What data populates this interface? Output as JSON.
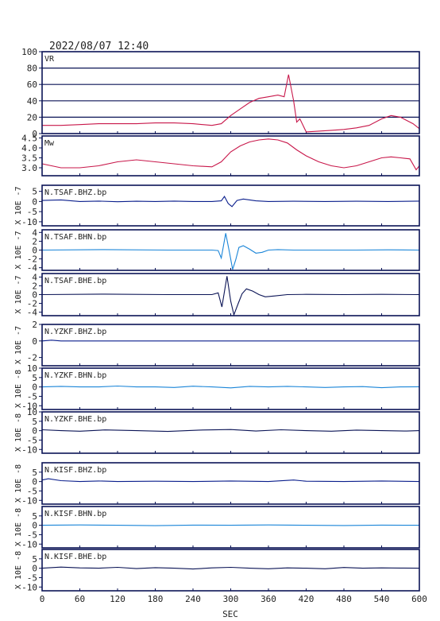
{
  "header": {
    "timestamp": "2022/08/07  12:40"
  },
  "chart_data": {
    "type": "line",
    "xlabel": "SEC",
    "xlim": [
      0,
      600
    ],
    "xticks": [
      "0",
      "60",
      "120",
      "180",
      "240",
      "300",
      "360",
      "420",
      "480",
      "540",
      "600"
    ],
    "panels": [
      {
        "label": "VR",
        "ylabel": "",
        "ylim": [
          0,
          100
        ],
        "yticks": [
          "0",
          "20",
          "40",
          "60",
          "80",
          "100"
        ],
        "grid": true,
        "color": "#c8174a",
        "series": {
          "x": [
            0,
            30,
            60,
            90,
            120,
            150,
            180,
            210,
            240,
            270,
            285,
            300,
            315,
            330,
            345,
            360,
            375,
            385,
            392,
            395,
            400,
            405,
            410,
            420,
            440,
            460,
            480,
            500,
            520,
            540,
            555,
            570,
            590,
            600
          ],
          "y": [
            10,
            10,
            11,
            12,
            12,
            12,
            13,
            13,
            12,
            10,
            12,
            22,
            30,
            38,
            43,
            45,
            47,
            45,
            72,
            60,
            40,
            14,
            18,
            2,
            3,
            4,
            5,
            7,
            10,
            18,
            22,
            20,
            12,
            6
          ]
        }
      },
      {
        "label": "Mw",
        "ylabel": "",
        "ylim": [
          2.6,
          4.6
        ],
        "yticks": [
          "3.0",
          "3.5",
          "4.0",
          "4.5"
        ],
        "grid": false,
        "color": "#c8174a",
        "series": {
          "x": [
            0,
            30,
            60,
            90,
            120,
            150,
            180,
            210,
            240,
            270,
            285,
            300,
            315,
            330,
            345,
            360,
            375,
            390,
            405,
            420,
            440,
            460,
            480,
            500,
            520,
            540,
            555,
            570,
            585,
            595,
            600
          ],
          "y": [
            3.2,
            3.0,
            3.0,
            3.1,
            3.3,
            3.4,
            3.3,
            3.2,
            3.1,
            3.05,
            3.3,
            3.8,
            4.1,
            4.3,
            4.4,
            4.45,
            4.4,
            4.25,
            3.9,
            3.6,
            3.3,
            3.1,
            3.0,
            3.1,
            3.3,
            3.5,
            3.55,
            3.5,
            3.45,
            2.9,
            3.1
          ]
        }
      },
      {
        "label": "N.TSAF.BHZ.bp",
        "ylabel": "X 10E -7",
        "ylim": [
          -12,
          8
        ],
        "yticks": [
          "5",
          "0",
          "-5",
          "-10"
        ],
        "grid": false,
        "color": "#0a1e8c",
        "series": {
          "x": [
            0,
            30,
            60,
            90,
            120,
            150,
            180,
            210,
            240,
            270,
            285,
            290,
            296,
            302,
            310,
            320,
            340,
            360,
            400,
            450,
            500,
            550,
            600
          ],
          "y": [
            0.5,
            0.8,
            0,
            0.2,
            -0.1,
            0.1,
            0,
            0.2,
            0,
            0,
            0.3,
            2.5,
            -1,
            -2.5,
            0.5,
            1.2,
            0.3,
            0,
            0.1,
            0,
            0.1,
            0,
            0.2
          ]
        }
      },
      {
        "label": "N.TSAF.BHN.bp",
        "ylabel": "X 10E -7",
        "ylim": [
          -4.6,
          4.6
        ],
        "yticks": [
          "4",
          "2",
          "0",
          "-2",
          "-4"
        ],
        "grid": false,
        "color": "#1a85d8",
        "series": {
          "x": [
            0,
            100,
            200,
            270,
            280,
            285,
            292,
            298,
            303,
            308,
            313,
            320,
            330,
            340,
            350,
            360,
            375,
            400,
            450,
            500,
            550,
            600
          ],
          "y": [
            0,
            0.1,
            0,
            0,
            -0.1,
            -1.8,
            3.8,
            -0.5,
            -4.4,
            -2.2,
            0.6,
            1.0,
            0.2,
            -0.7,
            -0.5,
            0,
            0.1,
            0,
            0,
            0,
            0.05,
            0
          ]
        }
      },
      {
        "label": "N.TSAF.BHE.bp",
        "ylabel": "X 10E -7",
        "ylim": [
          -4.8,
          4.8
        ],
        "yticks": [
          "4",
          "2",
          "0",
          "-2",
          "-4"
        ],
        "grid": false,
        "color": "#0b1456",
        "series": {
          "x": [
            0,
            100,
            200,
            270,
            280,
            286,
            294,
            300,
            305,
            312,
            318,
            325,
            335,
            345,
            355,
            370,
            390,
            420,
            480,
            540,
            600
          ],
          "y": [
            0,
            0.1,
            0,
            0,
            0.4,
            -2.8,
            4.2,
            -1.5,
            -4.6,
            -2.0,
            0.2,
            1.3,
            0.8,
            0,
            -0.5,
            -0.3,
            0,
            0.05,
            0,
            0.05,
            0
          ]
        }
      },
      {
        "label": "N.YZKF.BHZ.bp",
        "ylabel": "X 10E -7",
        "ylim": [
          -3.0,
          2.0
        ],
        "yticks": [
          "2",
          "0",
          "-2"
        ],
        "grid": false,
        "color": "#0a1e8c",
        "series": {
          "x": [
            0,
            15,
            30,
            60,
            120,
            180,
            240,
            300,
            360,
            420,
            480,
            540,
            600
          ],
          "y": [
            0,
            0.1,
            0,
            0,
            0,
            0,
            0,
            0,
            0,
            0,
            0,
            0,
            0
          ]
        }
      },
      {
        "label": "N.YZKF.BHN.bp",
        "ylabel": "X 10E -8",
        "ylim": [
          -12,
          10
        ],
        "yticks": [
          "10",
          "5",
          "0",
          "-5",
          "-10"
        ],
        "grid": false,
        "color": "#1a85d8",
        "series": {
          "x": [
            0,
            30,
            60,
            90,
            120,
            150,
            180,
            210,
            240,
            270,
            300,
            330,
            360,
            390,
            420,
            450,
            480,
            510,
            540,
            570,
            600
          ],
          "y": [
            0,
            0.3,
            0,
            0,
            0.5,
            0,
            0,
            -0.3,
            0.4,
            0,
            -0.5,
            0.3,
            0,
            0.3,
            0,
            -0.3,
            0,
            0.2,
            -0.4,
            0,
            0.1
          ]
        }
      },
      {
        "label": "N.YZKF.BHE.bp",
        "ylabel": "X 10E -8",
        "ylim": [
          -12,
          10
        ],
        "yticks": [
          "10",
          "5",
          "0",
          "-5",
          "-10"
        ],
        "grid": false,
        "color": "#0b1456",
        "series": {
          "x": [
            0,
            30,
            60,
            100,
            150,
            200,
            250,
            300,
            340,
            380,
            420,
            460,
            500,
            540,
            580,
            600
          ],
          "y": [
            0.5,
            0,
            -0.3,
            0.4,
            0,
            -0.4,
            0.3,
            0.6,
            -0.2,
            0.5,
            0,
            -0.3,
            0.3,
            0,
            -0.2,
            0
          ]
        }
      },
      {
        "label": "N.KISF.BHZ.bp",
        "ylabel": "X 10E -8",
        "ylim": [
          -12,
          10
        ],
        "yticks": [
          "5",
          "0",
          "-5",
          "-10"
        ],
        "grid": false,
        "color": "#0a1e8c",
        "series": {
          "x": [
            0,
            10,
            30,
            60,
            90,
            120,
            180,
            240,
            300,
            360,
            400,
            420,
            480,
            540,
            600
          ],
          "y": [
            0.8,
            1.5,
            0.5,
            0,
            0.3,
            0,
            0.2,
            0,
            0.3,
            0,
            0.8,
            0.2,
            0,
            0.3,
            0
          ]
        }
      },
      {
        "label": "N.KISF.BHN.bp",
        "ylabel": "X 10E -8",
        "ylim": [
          -12,
          10
        ],
        "yticks": [
          "5",
          "0",
          "-5",
          "-10"
        ],
        "grid": false,
        "color": "#1a85d8",
        "series": {
          "x": [
            0,
            60,
            120,
            180,
            240,
            300,
            360,
            420,
            480,
            540,
            600
          ],
          "y": [
            0,
            0.2,
            0,
            -0.2,
            0.1,
            0,
            0.2,
            0,
            -0.1,
            0.1,
            0
          ]
        }
      },
      {
        "label": "N.KISF.BHE.bp",
        "ylabel": "X 10E -8",
        "ylim": [
          -12,
          10
        ],
        "yticks": [
          "5",
          "0",
          "-5",
          "-10"
        ],
        "grid": false,
        "color": "#0b1456",
        "series": {
          "x": [
            0,
            30,
            60,
            90,
            120,
            150,
            180,
            210,
            240,
            270,
            300,
            330,
            360,
            390,
            420,
            450,
            480,
            510,
            540,
            570,
            600
          ],
          "y": [
            0,
            0.6,
            0.2,
            0,
            0.5,
            -0.2,
            0.3,
            0,
            -0.4,
            0.2,
            0.5,
            0,
            -0.3,
            0.2,
            0,
            -0.3,
            0.4,
            0,
            0.2,
            0.1,
            0
          ]
        }
      }
    ]
  }
}
